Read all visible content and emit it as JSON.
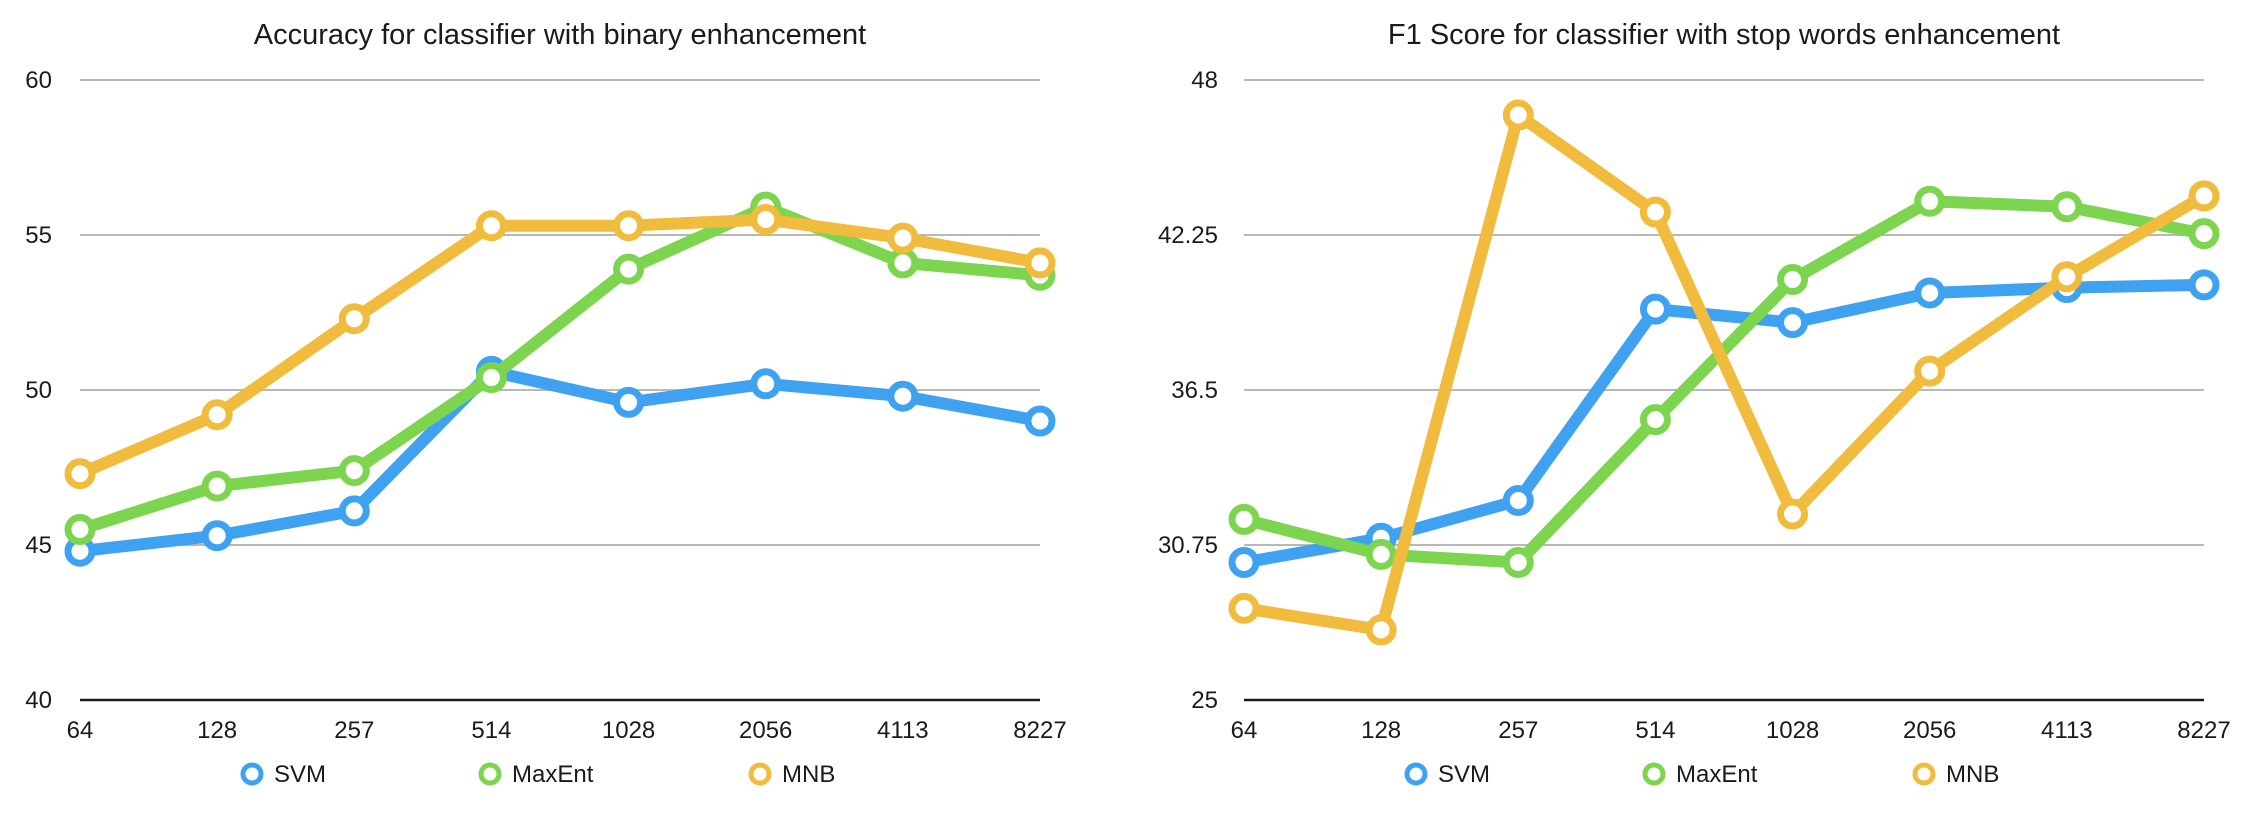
{
  "chart_data": [
    {
      "type": "line",
      "title": "Accuracy for classifier with binary enhancement",
      "xlabel": "",
      "ylabel": "",
      "categories": [
        "64",
        "128",
        "257",
        "514",
        "1028",
        "2056",
        "4113",
        "8227"
      ],
      "ylim": [
        40,
        60
      ],
      "yticks": [
        "40",
        "45",
        "50",
        "55",
        "60"
      ],
      "grid": true,
      "legend_position": "bottom",
      "series": [
        {
          "name": "SVM",
          "color": "#3fa2f0",
          "values": [
            44.8,
            45.3,
            46.1,
            50.6,
            49.6,
            50.2,
            49.8,
            49.0
          ]
        },
        {
          "name": "MaxEnt",
          "color": "#7dd44f",
          "values": [
            45.5,
            46.9,
            47.4,
            50.4,
            53.9,
            55.9,
            54.1,
            53.7
          ]
        },
        {
          "name": "MNB",
          "color": "#f1bb3d",
          "values": [
            47.3,
            49.2,
            52.3,
            55.3,
            55.3,
            55.5,
            54.9,
            54.1
          ]
        }
      ]
    },
    {
      "type": "line",
      "title": "F1 Score for classifier with stop words enhancement",
      "xlabel": "",
      "ylabel": "",
      "categories": [
        "64",
        "128",
        "257",
        "514",
        "1028",
        "2056",
        "4113",
        "8227"
      ],
      "ylim": [
        25,
        48
      ],
      "yticks": [
        "25",
        "30.75",
        "36.5",
        "42.25",
        "48"
      ],
      "grid": true,
      "legend_position": "bottom",
      "series": [
        {
          "name": "SVM",
          "color": "#3fa2f0",
          "values": [
            30.1,
            31.0,
            32.4,
            39.5,
            39.0,
            40.1,
            40.3,
            40.4
          ]
        },
        {
          "name": "MaxEnt",
          "color": "#7dd44f",
          "values": [
            31.7,
            30.4,
            30.1,
            35.4,
            40.6,
            43.5,
            43.3,
            42.3
          ]
        },
        {
          "name": "MNB",
          "color": "#f1bb3d",
          "values": [
            28.4,
            27.6,
            46.7,
            43.1,
            31.9,
            37.2,
            40.7,
            43.7
          ]
        }
      ]
    }
  ]
}
